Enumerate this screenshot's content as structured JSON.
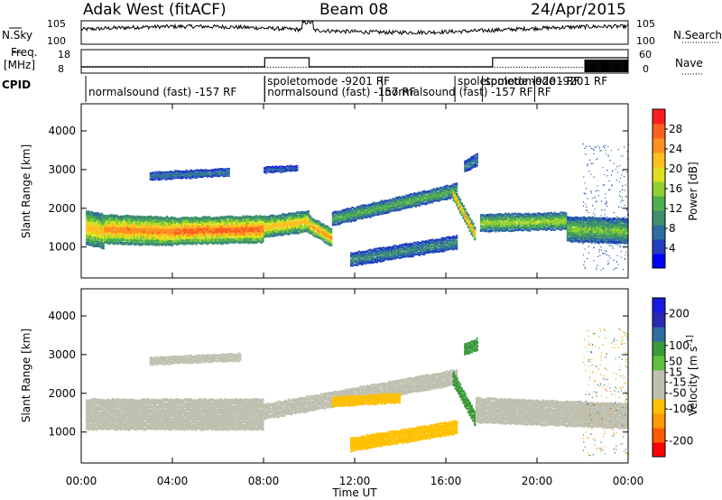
{
  "header": {
    "station": "Adak West (fitACF)",
    "beam": "Beam 08",
    "date": "24/Apr/2015"
  },
  "status_panel": {
    "nsky_label": "N.Sky",
    "nsearch_label": "N.Search",
    "nsky_ticks": [
      "10^5",
      "10^0"
    ],
    "nsearch_ticks": [
      "10^5",
      "10^0"
    ],
    "freq_label": "Freq.",
    "freq_unit": "[MHz]",
    "freq_ticks": [
      "18",
      "8"
    ],
    "nave_label": "Nave",
    "nave_ticks": [
      "60",
      "0"
    ],
    "cpid_label": "CPID",
    "cpid_entries": [
      {
        "label": "normalsound (fast) -157 RF",
        "start_hr": 0.2
      },
      {
        "label": "spoletomode -9201 RF",
        "start_hr": 8.05
      },
      {
        "label": "normalsound (fast) -157 RF",
        "start_hr": 8.05
      },
      {
        "label": "normalsound (fast) -157 RF",
        "start_hr": 13.2
      },
      {
        "label": "spoletomode -9201 RF",
        "start_hr": 16.4
      },
      {
        "label": "spoletomode -9201 RF",
        "start_hr": 17.6
      },
      {
        "label": "RF",
        "start_hr": 19.9
      }
    ]
  },
  "time_axis": {
    "title": "Time UT",
    "tick_labels": [
      "00:00",
      "04:00",
      "08:00",
      "12:00",
      "16:00",
      "20:00",
      "00:00"
    ]
  },
  "colors": {
    "power_scale": [
      "#0000ff",
      "#1f3fbf",
      "#2f6f9f",
      "#3f8f6f",
      "#4faf4f",
      "#8fcf2f",
      "#dfdf1f",
      "#ffbf1f",
      "#ff8f1f",
      "#ff5f1f",
      "#ff1f1f"
    ],
    "velocity_scale": [
      "#ff0000",
      "#ff5a00",
      "#ff9a00",
      "#ffc000",
      "#c0c0b0",
      "#c0c0b0",
      "#60c040",
      "#3a9a3a",
      "#2f6f9f",
      "#2a2ab0",
      "#1a1ae0"
    ]
  },
  "chart_data": [
    {
      "type": "heatmap",
      "name": "power",
      "ylabel": "Slant Range [km]",
      "yticks": [
        1000,
        2000,
        3000,
        4000
      ],
      "ylim": [
        200,
        4700
      ],
      "xlim_hours": [
        0,
        24
      ],
      "colorbar": {
        "title": "Power [dB]",
        "range": [
          0,
          32
        ],
        "tick_values": [
          4,
          8,
          12,
          16,
          20,
          24,
          28
        ],
        "tick_labels": [
          "4",
          "8",
          "12",
          "16",
          "20",
          "24",
          "28"
        ]
      },
      "bands": [
        {
          "t": [
            0.2,
            1.0
          ],
          "range_center": [
            1550,
            1450
          ],
          "width": 900,
          "peak_db": 24
        },
        {
          "t": [
            1.0,
            4.0
          ],
          "range_center": [
            1500,
            1450
          ],
          "width": 750,
          "peak_db": 28
        },
        {
          "t": [
            4.0,
            8.0
          ],
          "range_center": [
            1450,
            1500
          ],
          "width": 700,
          "peak_db": 30
        },
        {
          "t": [
            8.0,
            10.0
          ],
          "range_center": [
            1550,
            1700
          ],
          "width": 550,
          "peak_db": 24
        },
        {
          "t": [
            10.0,
            11.0
          ],
          "range_center": [
            1600,
            1250
          ],
          "width": 450,
          "peak_db": 26
        },
        {
          "t": [
            11.0,
            16.5
          ],
          "range_center": [
            1750,
            2500
          ],
          "width": 350,
          "peak_db": 14
        },
        {
          "t": [
            11.8,
            16.5
          ],
          "range_center": [
            700,
            1150
          ],
          "width": 350,
          "peak_db": 10
        },
        {
          "t": [
            16.3,
            17.3
          ],
          "range_center": [
            2400,
            1300
          ],
          "width": 350,
          "peak_db": 26
        },
        {
          "t": [
            3.0,
            6.5
          ],
          "range_center": [
            2850,
            2950
          ],
          "width": 200,
          "peak_db": 8
        },
        {
          "t": [
            16.8,
            17.4
          ],
          "range_center": [
            3100,
            3300
          ],
          "width": 300,
          "peak_db": 8
        },
        {
          "t": [
            8.0,
            9.5
          ],
          "range_center": [
            3000,
            3050
          ],
          "width": 150,
          "peak_db": 6
        },
        {
          "t": [
            17.5,
            21.3
          ],
          "range_center": [
            1650,
            1700
          ],
          "width": 450,
          "peak_db": 18
        },
        {
          "t": [
            21.3,
            24.0
          ],
          "range_center": [
            1500,
            1450
          ],
          "width": 650,
          "peak_db": 16
        }
      ]
    },
    {
      "type": "heatmap",
      "name": "velocity",
      "ylabel": "Slant Range [km]",
      "yticks": [
        1000,
        2000,
        3000,
        4000
      ],
      "ylim": [
        200,
        4700
      ],
      "xlim_hours": [
        0,
        24
      ],
      "colorbar": {
        "title": "Velocity [m s^-1]",
        "range": [
          -250,
          250
        ],
        "tick_values": [
          -200,
          -100,
          -50,
          -15,
          15,
          50,
          100,
          200
        ],
        "tick_labels": [
          "-200",
          "-100",
          "-50",
          "-15",
          "15",
          "50",
          "100",
          "200"
        ]
      },
      "bands": [
        {
          "t": [
            0.2,
            8.0
          ],
          "range_center": [
            1500,
            1500
          ],
          "width": 800,
          "velocity": 0
        },
        {
          "t": [
            8.0,
            16.5
          ],
          "range_center": [
            1550,
            2450
          ],
          "width": 400,
          "velocity": 0
        },
        {
          "t": [
            11.0,
            14.0
          ],
          "range_center": [
            1800,
            1900
          ],
          "width": 250,
          "velocity": -60
        },
        {
          "t": [
            11.8,
            16.5
          ],
          "range_center": [
            700,
            1150
          ],
          "width": 350,
          "velocity": -60
        },
        {
          "t": [
            16.3,
            17.3
          ],
          "range_center": [
            2400,
            1300
          ],
          "width": 350,
          "velocity": 60
        },
        {
          "t": [
            16.8,
            17.4
          ],
          "range_center": [
            3150,
            3300
          ],
          "width": 300,
          "velocity": 60
        },
        {
          "t": [
            3.0,
            7.0
          ],
          "range_center": [
            2850,
            2950
          ],
          "width": 200,
          "velocity": 0
        },
        {
          "t": [
            17.3,
            24.0
          ],
          "range_center": [
            1600,
            1450
          ],
          "width": 650,
          "velocity": 0
        }
      ]
    }
  ]
}
